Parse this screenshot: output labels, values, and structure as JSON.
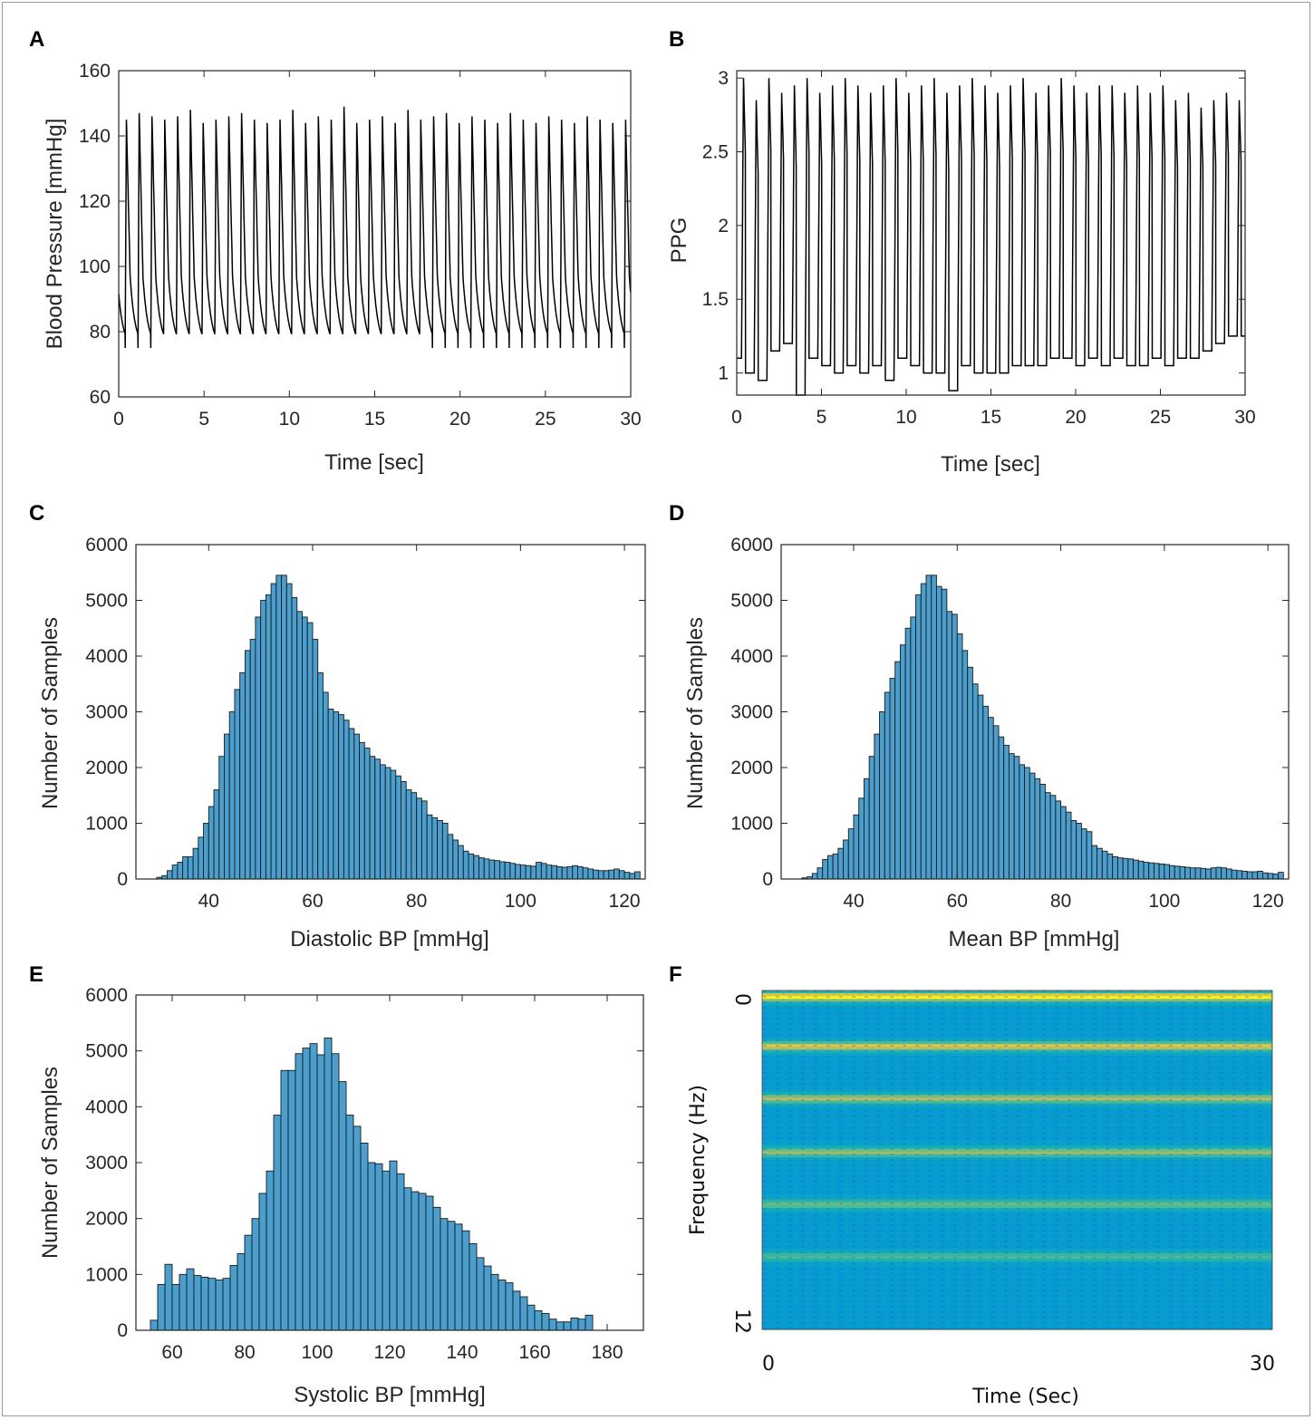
{
  "panels": [
    {
      "letter": "A"
    },
    {
      "letter": "B"
    },
    {
      "letter": "C"
    },
    {
      "letter": "D"
    },
    {
      "letter": "E"
    },
    {
      "letter": "F"
    }
  ],
  "colors": {
    "line": "#000000",
    "bar_fill": "#4a9fcf",
    "bar_edge": "#1a1a1a",
    "axis": "#262626"
  },
  "chart_data": [
    {
      "id": "A",
      "type": "line",
      "xlabel": "Time [sec]",
      "ylabel": "Blood Pressure  [mmHg]",
      "xlim": [
        0,
        30
      ],
      "ylim": [
        60,
        160
      ],
      "xticks": [
        "0",
        "5",
        "10",
        "15",
        "20",
        "25",
        "30"
      ],
      "yticks": [
        "60",
        "80",
        "100",
        "120",
        "140",
        "160"
      ],
      "series": [
        {
          "period_sec": 0.75,
          "first_peak_sec": 0.45,
          "systolic_peaks_mmHg": [
            145,
            147,
            146,
            145,
            146,
            148,
            144,
            145,
            146,
            147,
            145,
            144,
            145,
            148,
            144,
            146,
            145,
            149,
            144,
            145,
            146,
            144,
            148,
            145,
            146,
            147,
            144,
            146,
            145,
            144,
            147,
            145,
            144,
            146,
            145,
            144,
            146,
            145,
            144,
            145
          ],
          "diastolic_mmHg": 75,
          "dicrotic_notch_mmHg": 97
        }
      ]
    },
    {
      "id": "B",
      "type": "line",
      "xlabel": "Time [sec]",
      "ylabel": "PPG",
      "xlim": [
        0,
        30
      ],
      "ylim": [
        0.85,
        3.05
      ],
      "xticks": [
        "0",
        "5",
        "10",
        "15",
        "20",
        "25",
        "30"
      ],
      "yticks": [
        "1",
        "1.5",
        "2",
        "2.5",
        "3"
      ],
      "series": [
        {
          "period_sec": 0.75,
          "first_peak_sec": 0.4,
          "peaks": [
            3.0,
            2.85,
            3.0,
            2.9,
            2.95,
            3.0,
            2.9,
            2.95,
            3.0,
            2.95,
            2.9,
            2.95,
            3.0,
            2.9,
            2.95,
            3.0,
            2.9,
            2.95,
            3.0,
            2.95,
            2.9,
            2.95,
            3.0,
            2.9,
            2.95,
            3.0,
            2.95,
            2.9,
            2.95,
            2.95,
            2.9,
            2.95,
            2.9,
            2.95,
            2.85,
            2.9,
            2.8,
            2.85,
            2.9,
            2.85
          ],
          "troughs": [
            1.1,
            1.0,
            0.95,
            1.15,
            1.2,
            0.85,
            1.1,
            1.05,
            1.0,
            1.05,
            1.0,
            1.05,
            0.95,
            1.1,
            1.05,
            1.0,
            1.0,
            0.88,
            1.05,
            1.0,
            1.0,
            1.0,
            1.05,
            1.05,
            1.05,
            1.1,
            1.1,
            1.05,
            1.1,
            1.05,
            1.1,
            1.05,
            1.05,
            1.1,
            1.05,
            1.1,
            1.1,
            1.15,
            1.2,
            1.25
          ]
        }
      ]
    },
    {
      "id": "C",
      "type": "bar",
      "xlabel": "Diastolic BP [mmHg]",
      "ylabel": "Number of Samples",
      "xlim": [
        26,
        124
      ],
      "ylim": [
        0,
        6000
      ],
      "xticks": [
        "40",
        "60",
        "80",
        "100",
        "120"
      ],
      "yticks": [
        "0",
        "1000",
        "2000",
        "3000",
        "4000",
        "5000",
        "6000"
      ],
      "bin_start": 30,
      "bin_width": 1,
      "values": [
        30,
        60,
        150,
        250,
        300,
        400,
        400,
        550,
        750,
        1000,
        1300,
        1600,
        2200,
        2600,
        3000,
        3400,
        3700,
        4100,
        4300,
        4700,
        5000,
        5100,
        5300,
        5450,
        5450,
        5300,
        5050,
        4800,
        4700,
        4600,
        4300,
        3700,
        3350,
        3050,
        3000,
        2950,
        2850,
        2700,
        2600,
        2450,
        2350,
        2200,
        2150,
        2050,
        2000,
        1950,
        1850,
        1750,
        1600,
        1550,
        1450,
        1400,
        1150,
        1100,
        1050,
        1000,
        800,
        700,
        600,
        500,
        450,
        420,
        380,
        360,
        340,
        330,
        310,
        300,
        280,
        260,
        250,
        240,
        230,
        300,
        280,
        250,
        240,
        220,
        210,
        220,
        240,
        220,
        200,
        180,
        160,
        150,
        150,
        160,
        180,
        150,
        120,
        100,
        130
      ]
    },
    {
      "id": "D",
      "type": "bar",
      "xlabel": "Mean BP [mmHg]",
      "ylabel": "Number of Samples",
      "xlim": [
        26,
        124
      ],
      "ylim": [
        0,
        6000
      ],
      "xticks": [
        "40",
        "60",
        "80",
        "100",
        "120"
      ],
      "yticks": [
        "0",
        "1000",
        "2000",
        "3000",
        "4000",
        "5000",
        "6000"
      ],
      "bin_start": 30,
      "bin_width": 1,
      "values": [
        20,
        40,
        100,
        200,
        350,
        420,
        450,
        550,
        700,
        900,
        1150,
        1450,
        1800,
        2200,
        2600,
        3000,
        3350,
        3600,
        3900,
        4200,
        4500,
        4700,
        5100,
        5300,
        5450,
        5450,
        5250,
        5200,
        4800,
        4750,
        4400,
        4100,
        3800,
        3500,
        3300,
        3100,
        2900,
        2750,
        2550,
        2400,
        2250,
        2200,
        2050,
        2000,
        1900,
        1800,
        1700,
        1550,
        1500,
        1400,
        1300,
        1200,
        1050,
        1000,
        900,
        850,
        600,
        550,
        500,
        450,
        400,
        380,
        370,
        360,
        340,
        320,
        300,
        290,
        280,
        270,
        260,
        240,
        230,
        220,
        210,
        200,
        200,
        190,
        180,
        200,
        210,
        200,
        180,
        160,
        150,
        140,
        130,
        130,
        140,
        110,
        100,
        90,
        120
      ]
    },
    {
      "id": "E",
      "type": "bar",
      "xlabel": "Systolic BP [mmHg]",
      "ylabel": "Number of Samples",
      "xlim": [
        50,
        190
      ],
      "ylim": [
        0,
        6000
      ],
      "xticks": [
        "60",
        "80",
        "100",
        "120",
        "140",
        "160",
        "180"
      ],
      "yticks": [
        "0",
        "1000",
        "2000",
        "3000",
        "4000",
        "5000",
        "6000"
      ],
      "bin_start": 54,
      "bin_width": 2,
      "values": [
        180,
        820,
        1180,
        820,
        1000,
        1100,
        980,
        950,
        930,
        900,
        930,
        1160,
        1370,
        1700,
        2000,
        2450,
        2850,
        3850,
        4650,
        4650,
        4950,
        5050,
        5130,
        4930,
        5230,
        4950,
        4450,
        3850,
        3650,
        3350,
        3000,
        2980,
        2850,
        3030,
        2800,
        2550,
        2480,
        2450,
        2400,
        2200,
        2000,
        1950,
        1900,
        1780,
        1550,
        1300,
        1150,
        1000,
        900,
        850,
        700,
        600,
        450,
        350,
        300,
        200,
        150,
        150,
        220,
        200,
        270
      ]
    },
    {
      "id": "F",
      "type": "heatmap",
      "xlabel": "Time (Sec)",
      "ylabel": "Frequency (Hz)",
      "xlim": [
        0,
        30
      ],
      "ylim": [
        0,
        12
      ],
      "xticks": [
        "0",
        "30"
      ],
      "yticks": [
        "0",
        "12"
      ],
      "harmonic_bands_hz": [
        0,
        1.75,
        3.6,
        5.5,
        7.35,
        9.2
      ],
      "harmonic_intensity": [
        1.0,
        0.85,
        0.75,
        0.7,
        0.6,
        0.5
      ],
      "colormap": "parula"
    }
  ]
}
